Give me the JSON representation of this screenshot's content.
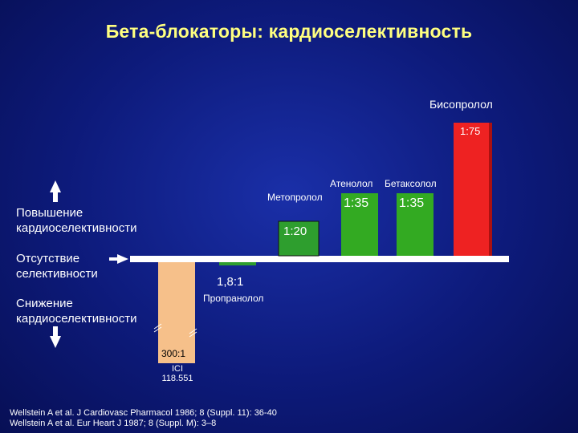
{
  "title": "Бета-блокаторы: кардиоселективность",
  "legend": {
    "increase": [
      "Повышение",
      "кардиоселективности"
    ],
    "none": [
      "Отсутствие",
      "селективности"
    ],
    "decrease": [
      "Снижение",
      "кардиоселективности"
    ]
  },
  "footnotes": [
    "Wellstein A et al. J Cardiovasc Pharmacol 1986; 8 (Suppl. 11): 36-40",
    "Wellstein A et al. Eur Heart J 1987; 8 (Suppl. M): 3–8"
  ],
  "colors": {
    "title": "#ffff80",
    "ici": "#f6c08a",
    "propranolol": "#2e9e2e",
    "metoprolol": "#2e9e2e",
    "atenolol": "#33aa22",
    "betaxolol": "#33aa22",
    "bisoprolol": "#ee2222"
  },
  "chart_data": {
    "type": "bar",
    "title": "Бета-блокаторы: кардиоселективность",
    "baseline": "Отсутствие селективности",
    "bars": [
      {
        "name": "ICI 118.551",
        "ratio_label": "300:1",
        "direction": "decrease",
        "value": -300
      },
      {
        "name": "Пропранолол",
        "ratio_label": "1,8:1",
        "direction": "decrease",
        "value": -1.8
      },
      {
        "name": "Метопролол",
        "ratio_label": "1:20",
        "direction": "increase",
        "value": 20
      },
      {
        "name": "Атенолол",
        "ratio_label": "1:35",
        "direction": "increase",
        "value": 35
      },
      {
        "name": "Бетаксолол",
        "ratio_label": "1:35",
        "direction": "increase",
        "value": 35
      },
      {
        "name": "Бисопролол",
        "ratio_label": "1:75",
        "direction": "increase",
        "value": 75
      }
    ]
  }
}
